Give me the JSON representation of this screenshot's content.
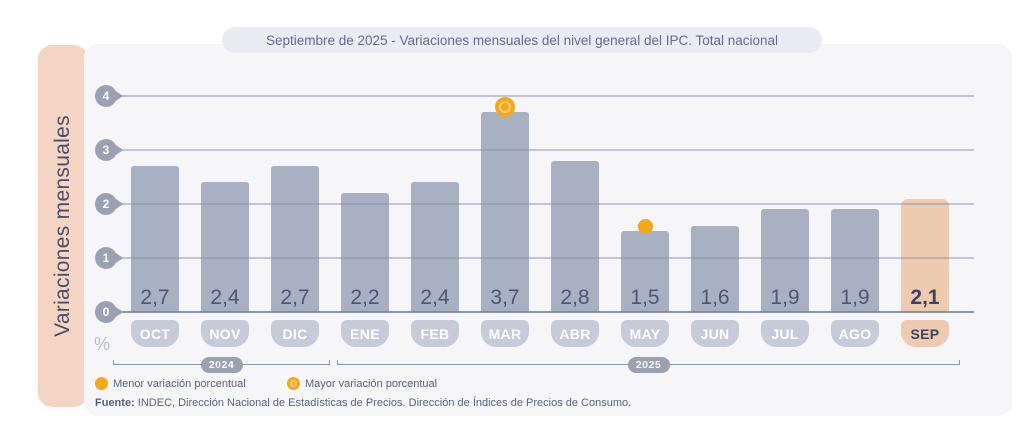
{
  "title": "Septiembre de 2025 - Variaciones mensuales del nivel general del IPC. Total nacional",
  "y_axis_label": "Variaciones mensuales",
  "percent_label": "%",
  "chart_data": {
    "type": "bar",
    "categories": [
      "OCT",
      "NOV",
      "DIC",
      "ENE",
      "FEB",
      "MAR",
      "ABR",
      "MAY",
      "JUN",
      "JUL",
      "AGO",
      "SEP"
    ],
    "values": [
      2.7,
      2.4,
      2.7,
      2.2,
      2.4,
      3.7,
      2.8,
      1.5,
      1.6,
      1.9,
      1.9,
      2.1
    ],
    "value_labels": [
      "2,7",
      "2,4",
      "2,7",
      "2,2",
      "2,4",
      "3,7",
      "2,8",
      "1,5",
      "1,6",
      "1,9",
      "1,9",
      "2,1"
    ],
    "title": "Septiembre de 2025 - Variaciones mensuales del nivel general del IPC. Total nacional",
    "xlabel": "",
    "ylabel": "Variaciones mensuales",
    "unit": "%",
    "ylim": [
      0,
      4
    ],
    "yticks": [
      0,
      1,
      2,
      3,
      4
    ],
    "grid": true,
    "year_groups": [
      {
        "label": "2024",
        "from": "OCT",
        "to": "DIC"
      },
      {
        "label": "2025",
        "from": "ENE",
        "to": "SEP"
      }
    ],
    "highlights": {
      "min": {
        "category": "MAY",
        "value": 1.5
      },
      "max": {
        "category": "MAR",
        "value": 3.7
      }
    },
    "current_category": "SEP"
  },
  "legend": {
    "items": [
      {
        "label": "Menor variación porcentual",
        "marker": "solid"
      },
      {
        "label": "Mayor variación porcentual",
        "marker": "ringed"
      }
    ]
  },
  "source": {
    "prefix": "Fuente:",
    "text": " INDEC, Dirección Nacional de Estadísticas de Precios. Dirección de Índices de Precios de Consumo."
  },
  "colors": {
    "bar": "#a7b1c2",
    "bar_current": "#edcab0",
    "accent_orange": "#f1a81e",
    "sidebar_band": "#f4d5c3",
    "month_pill": "#c5cbd8",
    "year_pill": "#9aa2af",
    "tick_badge": "#99a1b3"
  }
}
